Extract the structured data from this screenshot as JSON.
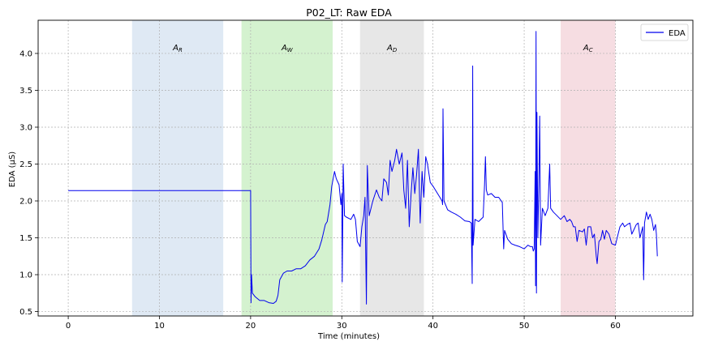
{
  "chart_data": {
    "type": "line",
    "title": "P02_LT: Raw EDA",
    "xlabel": "Time (minutes)",
    "ylabel": "EDA (µS)",
    "xlim": [
      -3.3,
      68.5
    ],
    "ylim": [
      0.44,
      4.45
    ],
    "xticks": [
      0,
      10,
      20,
      30,
      40,
      50,
      60
    ],
    "yticks": [
      0.5,
      1.0,
      1.5,
      2.0,
      2.5,
      3.0,
      3.5,
      4.0
    ],
    "xtick_labels": [
      "0",
      "10",
      "20",
      "30",
      "40",
      "50",
      "60"
    ],
    "ytick_labels": [
      "0.5",
      "1.0",
      "1.5",
      "2.0",
      "2.5",
      "3.0",
      "3.5",
      "4.0"
    ],
    "grid": true,
    "legend": {
      "placement": "top-right",
      "entries": [
        "EDA"
      ]
    },
    "regions": [
      {
        "label": "A",
        "sub": "R",
        "x": [
          7.0,
          17.0
        ],
        "color": "#dfe9f4"
      },
      {
        "label": "A",
        "sub": "W",
        "x": [
          19.0,
          29.0
        ],
        "color": "#d4f2cf"
      },
      {
        "label": "A",
        "sub": "D",
        "x": [
          32.0,
          39.0
        ],
        "color": "#e7e7e7"
      },
      {
        "label": "A",
        "sub": "C",
        "x": [
          54.0,
          60.0
        ],
        "color": "#f6dde2"
      }
    ],
    "series": [
      {
        "name": "EDA",
        "color": "#0000ee",
        "points": [
          [
            0.0,
            2.14
          ],
          [
            19.9,
            2.14
          ],
          [
            20.0,
            2.14
          ],
          [
            20.05,
            0.62
          ],
          [
            20.1,
            1.0
          ],
          [
            20.2,
            0.75
          ],
          [
            20.5,
            0.7
          ],
          [
            21.0,
            0.65
          ],
          [
            21.5,
            0.65
          ],
          [
            22.0,
            0.62
          ],
          [
            22.5,
            0.61
          ],
          [
            22.8,
            0.64
          ],
          [
            23.0,
            0.72
          ],
          [
            23.2,
            0.93
          ],
          [
            23.6,
            1.02
          ],
          [
            24.0,
            1.05
          ],
          [
            24.5,
            1.05
          ],
          [
            25.0,
            1.08
          ],
          [
            25.5,
            1.08
          ],
          [
            26.0,
            1.12
          ],
          [
            26.5,
            1.2
          ],
          [
            27.0,
            1.25
          ],
          [
            27.5,
            1.35
          ],
          [
            27.8,
            1.47
          ],
          [
            28.2,
            1.68
          ],
          [
            28.4,
            1.72
          ],
          [
            28.7,
            1.95
          ],
          [
            28.9,
            2.2
          ],
          [
            29.2,
            2.4
          ],
          [
            29.4,
            2.3
          ],
          [
            29.7,
            2.22
          ],
          [
            29.9,
            1.95
          ],
          [
            30.0,
            2.1
          ],
          [
            30.05,
            0.9
          ],
          [
            30.15,
            2.5
          ],
          [
            30.3,
            1.8
          ],
          [
            30.5,
            1.78
          ],
          [
            31.0,
            1.75
          ],
          [
            31.3,
            1.82
          ],
          [
            31.5,
            1.75
          ],
          [
            31.7,
            1.45
          ],
          [
            32.0,
            1.38
          ],
          [
            32.2,
            1.65
          ],
          [
            32.4,
            1.8
          ],
          [
            32.55,
            2.05
          ],
          [
            32.7,
            0.6
          ],
          [
            32.8,
            2.48
          ],
          [
            33.0,
            1.8
          ],
          [
            33.4,
            2.0
          ],
          [
            33.8,
            2.15
          ],
          [
            34.1,
            2.05
          ],
          [
            34.4,
            2.0
          ],
          [
            34.6,
            2.3
          ],
          [
            34.9,
            2.25
          ],
          [
            35.1,
            2.08
          ],
          [
            35.3,
            2.55
          ],
          [
            35.5,
            2.4
          ],
          [
            35.8,
            2.55
          ],
          [
            36.0,
            2.7
          ],
          [
            36.3,
            2.5
          ],
          [
            36.6,
            2.65
          ],
          [
            36.8,
            2.15
          ],
          [
            37.0,
            1.9
          ],
          [
            37.2,
            2.55
          ],
          [
            37.4,
            1.65
          ],
          [
            37.6,
            2.1
          ],
          [
            37.8,
            2.45
          ],
          [
            38.0,
            2.1
          ],
          [
            38.2,
            2.35
          ],
          [
            38.4,
            2.7
          ],
          [
            38.6,
            1.7
          ],
          [
            38.8,
            2.4
          ],
          [
            39.0,
            2.05
          ],
          [
            39.2,
            2.6
          ],
          [
            39.4,
            2.5
          ],
          [
            39.7,
            2.25
          ],
          [
            40.0,
            2.2
          ],
          [
            40.5,
            2.1
          ],
          [
            41.0,
            2.0
          ],
          [
            41.05,
            1.95
          ],
          [
            41.1,
            3.25
          ],
          [
            41.2,
            2.0
          ],
          [
            41.6,
            1.88
          ],
          [
            42.0,
            1.85
          ],
          [
            42.5,
            1.82
          ],
          [
            43.0,
            1.78
          ],
          [
            43.5,
            1.73
          ],
          [
            44.0,
            1.72
          ],
          [
            44.2,
            1.7
          ],
          [
            44.3,
            0.88
          ],
          [
            44.35,
            3.83
          ],
          [
            44.4,
            1.4
          ],
          [
            44.6,
            1.75
          ],
          [
            45.0,
            1.72
          ],
          [
            45.5,
            1.78
          ],
          [
            45.65,
            2.22
          ],
          [
            45.75,
            2.6
          ],
          [
            45.85,
            2.15
          ],
          [
            46.0,
            2.08
          ],
          [
            46.4,
            2.1
          ],
          [
            46.8,
            2.05
          ],
          [
            47.2,
            2.05
          ],
          [
            47.6,
            1.98
          ],
          [
            47.75,
            1.35
          ],
          [
            47.85,
            1.6
          ],
          [
            48.2,
            1.48
          ],
          [
            48.6,
            1.42
          ],
          [
            49.0,
            1.4
          ],
          [
            49.5,
            1.38
          ],
          [
            50.0,
            1.35
          ],
          [
            50.4,
            1.4
          ],
          [
            50.7,
            1.38
          ],
          [
            50.9,
            1.38
          ],
          [
            51.0,
            1.32
          ],
          [
            51.1,
            1.35
          ],
          [
            51.2,
            2.4
          ],
          [
            51.25,
            0.85
          ],
          [
            51.3,
            4.3
          ],
          [
            51.35,
            0.75
          ],
          [
            51.4,
            3.2
          ],
          [
            51.5,
            1.5
          ],
          [
            51.6,
            2.2
          ],
          [
            51.7,
            3.15
          ],
          [
            51.8,
            1.4
          ],
          [
            52.0,
            1.9
          ],
          [
            52.3,
            1.8
          ],
          [
            52.6,
            1.9
          ],
          [
            52.8,
            2.5
          ],
          [
            52.9,
            1.9
          ],
          [
            53.2,
            1.85
          ],
          [
            53.6,
            1.8
          ],
          [
            54.0,
            1.75
          ],
          [
            54.4,
            1.8
          ],
          [
            54.7,
            1.72
          ],
          [
            55.0,
            1.75
          ],
          [
            55.2,
            1.72
          ],
          [
            55.4,
            1.65
          ],
          [
            55.6,
            1.65
          ],
          [
            55.8,
            1.45
          ],
          [
            56.0,
            1.6
          ],
          [
            56.4,
            1.58
          ],
          [
            56.6,
            1.62
          ],
          [
            56.8,
            1.4
          ],
          [
            57.0,
            1.65
          ],
          [
            57.3,
            1.65
          ],
          [
            57.5,
            1.5
          ],
          [
            57.7,
            1.55
          ],
          [
            57.9,
            1.25
          ],
          [
            58.0,
            1.15
          ],
          [
            58.2,
            1.45
          ],
          [
            58.4,
            1.48
          ],
          [
            58.6,
            1.6
          ],
          [
            58.8,
            1.48
          ],
          [
            59.0,
            1.6
          ],
          [
            59.3,
            1.55
          ],
          [
            59.6,
            1.42
          ],
          [
            60.0,
            1.4
          ],
          [
            60.3,
            1.55
          ],
          [
            60.5,
            1.65
          ],
          [
            60.8,
            1.7
          ],
          [
            61.0,
            1.65
          ],
          [
            61.3,
            1.68
          ],
          [
            61.6,
            1.7
          ],
          [
            61.8,
            1.55
          ],
          [
            62.0,
            1.6
          ],
          [
            62.3,
            1.68
          ],
          [
            62.5,
            1.7
          ],
          [
            62.7,
            1.5
          ],
          [
            63.0,
            1.65
          ],
          [
            63.1,
            0.93
          ],
          [
            63.2,
            1.7
          ],
          [
            63.4,
            1.85
          ],
          [
            63.6,
            1.75
          ],
          [
            63.8,
            1.82
          ],
          [
            64.0,
            1.75
          ],
          [
            64.2,
            1.6
          ],
          [
            64.4,
            1.68
          ],
          [
            64.5,
            1.55
          ],
          [
            64.6,
            1.25
          ]
        ]
      }
    ]
  }
}
